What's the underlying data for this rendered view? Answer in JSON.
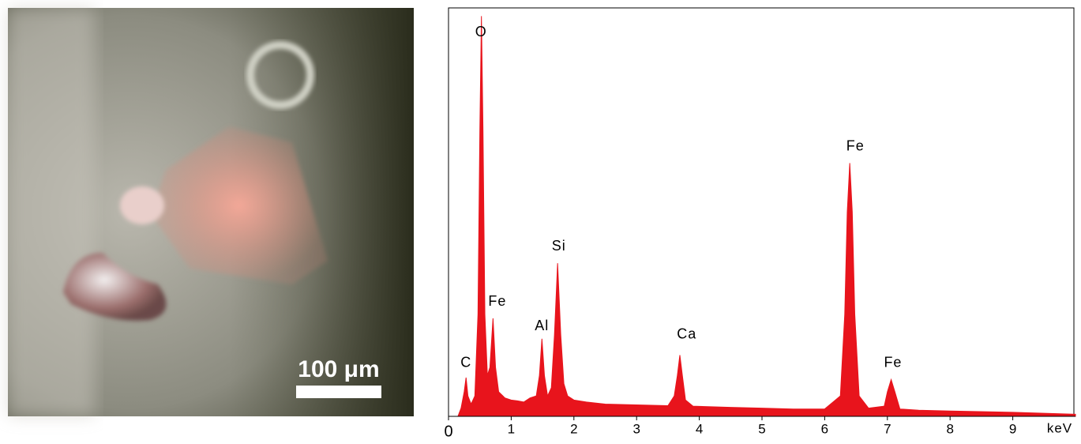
{
  "image_panel": {
    "scale_bar": "100 μm"
  },
  "chart_data": {
    "type": "area",
    "color": "#e8141c",
    "x_label": "keV",
    "x": [
      0.15,
      0.2,
      0.25,
      0.28,
      0.31,
      0.36,
      0.42,
      0.47,
      0.5,
      0.525,
      0.55,
      0.58,
      0.62,
      0.66,
      0.71,
      0.75,
      0.8,
      0.9,
      1.0,
      1.1,
      1.2,
      1.3,
      1.4,
      1.45,
      1.49,
      1.53,
      1.58,
      1.64,
      1.69,
      1.74,
      1.79,
      1.84,
      1.9,
      2.0,
      2.2,
      2.5,
      3.0,
      3.5,
      3.6,
      3.65,
      3.69,
      3.73,
      3.78,
      3.9,
      4.5,
      5.0,
      5.5,
      6.0,
      6.25,
      6.32,
      6.36,
      6.4,
      6.44,
      6.48,
      6.55,
      6.7,
      6.95,
      7.0,
      7.06,
      7.12,
      7.2,
      7.5,
      8.0,
      9.0,
      10.0
    ],
    "values": [
      0,
      2,
      6,
      9.5,
      5,
      3,
      5,
      25,
      70,
      98,
      70,
      25,
      10,
      12,
      24,
      12,
      6,
      4.5,
      4,
      3.8,
      3.5,
      4.5,
      5,
      10,
      19,
      10,
      5,
      7,
      20,
      37.5,
      20,
      8,
      5,
      4,
      3.5,
      3,
      2.8,
      2.6,
      5,
      10,
      15,
      10,
      4,
      2.5,
      2.2,
      2,
      1.8,
      1.8,
      5,
      25,
      50,
      62,
      50,
      25,
      5,
      2,
      2.5,
      6,
      9,
      6,
      1.8,
      1.5,
      1.3,
      1.0,
      0.5
    ],
    "xlim": [
      0,
      10
    ],
    "ylim": [
      0,
      100
    ],
    "xticks": [
      0,
      1,
      2,
      3,
      4,
      5,
      6,
      7,
      8,
      9
    ],
    "annotations": [
      {
        "text": "C",
        "x": 0.28,
        "y": 13
      },
      {
        "text": "O",
        "x": 0.52,
        "y": 94
      },
      {
        "text": "Fe",
        "x": 0.78,
        "y": 28
      },
      {
        "text": "Al",
        "x": 1.49,
        "y": 22
      },
      {
        "text": "Si",
        "x": 1.76,
        "y": 41.5
      },
      {
        "text": "Ca",
        "x": 3.8,
        "y": 20
      },
      {
        "text": "Fe",
        "x": 6.49,
        "y": 66
      },
      {
        "text": "Fe",
        "x": 7.09,
        "y": 13
      }
    ]
  }
}
